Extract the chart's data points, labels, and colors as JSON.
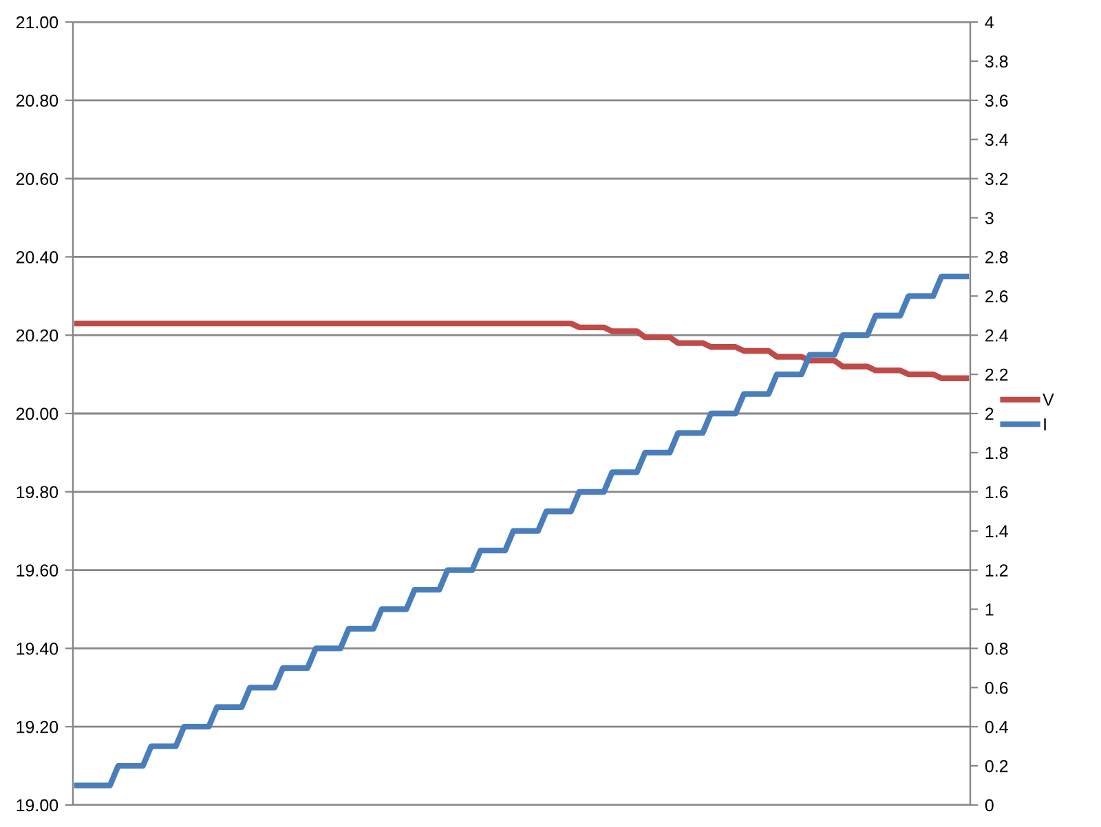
{
  "chart_data": {
    "type": "line",
    "categories": [
      null,
      null,
      null,
      null,
      null,
      null,
      null,
      null,
      null,
      null,
      null,
      null,
      null,
      null,
      null,
      null,
      null,
      null,
      null,
      null,
      null,
      null,
      null,
      null,
      null,
      null,
      null,
      null,
      null,
      null,
      null,
      null,
      null,
      null,
      null,
      null,
      null,
      null,
      null,
      null,
      null,
      null,
      null,
      null,
      null,
      null,
      null,
      null,
      null,
      null,
      null,
      null,
      null,
      null,
      null,
      null,
      null,
      null,
      null,
      null,
      null,
      null,
      null,
      null,
      null,
      null,
      null,
      null,
      null,
      null,
      null,
      null,
      null,
      null,
      null,
      null,
      null,
      null,
      null,
      null,
      null,
      null,
      null,
      null,
      null,
      null,
      null,
      null,
      null,
      null,
      null,
      null,
      null,
      null,
      null,
      null,
      null,
      null,
      null,
      null,
      null,
      null,
      null,
      null,
      null,
      null,
      null,
      null,
      null
    ],
    "series": [
      {
        "name": "V",
        "color": "#be4b48",
        "values": [
          20.23,
          20.23,
          20.23,
          20.23,
          20.23,
          20.23,
          20.23,
          20.23,
          20.23,
          20.23,
          20.23,
          20.23,
          20.23,
          20.23,
          20.23,
          20.23,
          20.23,
          20.23,
          20.23,
          20.23,
          20.23,
          20.23,
          20.23,
          20.23,
          20.23,
          20.23,
          20.23,
          20.23,
          20.23,
          20.23,
          20.23,
          20.23,
          20.23,
          20.23,
          20.23,
          20.23,
          20.23,
          20.23,
          20.23,
          20.23,
          20.23,
          20.23,
          20.23,
          20.23,
          20.23,
          20.23,
          20.23,
          20.23,
          20.23,
          20.23,
          20.23,
          20.23,
          20.23,
          20.23,
          20.23,
          20.23,
          20.23,
          20.23,
          20.23,
          20.23,
          20.23,
          20.22,
          20.22,
          20.22,
          20.22,
          20.21,
          20.21,
          20.21,
          20.21,
          20.195,
          20.195,
          20.195,
          20.195,
          20.18,
          20.18,
          20.18,
          20.18,
          20.17,
          20.17,
          20.17,
          20.17,
          20.16,
          20.16,
          20.16,
          20.16,
          20.145,
          20.145,
          20.145,
          20.145,
          20.135,
          20.135,
          20.135,
          20.135,
          20.12,
          20.12,
          20.12,
          20.12,
          20.11,
          20.11,
          20.11,
          20.11,
          20.1,
          20.1,
          20.1,
          20.1,
          20.09,
          20.09,
          20.09,
          20.09
        ]
      },
      {
        "name": "I",
        "color": "#4a7ebb",
        "axis": "y2",
        "values": [
          0.1,
          0.1,
          0.1,
          0.1,
          0.1,
          0.2,
          0.2,
          0.2,
          0.2,
          0.3,
          0.3,
          0.3,
          0.3,
          0.4,
          0.4,
          0.4,
          0.4,
          0.5,
          0.5,
          0.5,
          0.5,
          0.6,
          0.6,
          0.6,
          0.6,
          0.7,
          0.7,
          0.7,
          0.7,
          0.8,
          0.8,
          0.8,
          0.8,
          0.9,
          0.9,
          0.9,
          0.9,
          1.0,
          1.0,
          1.0,
          1.0,
          1.1,
          1.1,
          1.1,
          1.1,
          1.2,
          1.2,
          1.2,
          1.2,
          1.3,
          1.3,
          1.3,
          1.3,
          1.4,
          1.4,
          1.4,
          1.4,
          1.5,
          1.5,
          1.5,
          1.5,
          1.6,
          1.6,
          1.6,
          1.6,
          1.7,
          1.7,
          1.7,
          1.7,
          1.8,
          1.8,
          1.8,
          1.8,
          1.9,
          1.9,
          1.9,
          1.9,
          2.0,
          2.0,
          2.0,
          2.0,
          2.1,
          2.1,
          2.1,
          2.1,
          2.2,
          2.2,
          2.2,
          2.2,
          2.3,
          2.3,
          2.3,
          2.3,
          2.4,
          2.4,
          2.4,
          2.4,
          2.5,
          2.5,
          2.5,
          2.5,
          2.6,
          2.6,
          2.6,
          2.6,
          2.7,
          2.7,
          2.7,
          2.7
        ]
      }
    ],
    "ylim": [
      19,
      21
    ],
    "yticks": [
      {
        "value": 19,
        "label": "19.00"
      },
      {
        "value": 19.2,
        "label": "19.20"
      },
      {
        "value": 19.4,
        "label": "19.40"
      },
      {
        "value": 19.6,
        "label": "19.60"
      },
      {
        "value": 19.8,
        "label": "19.80"
      },
      {
        "value": 20,
        "label": "20.00"
      },
      {
        "value": 20.2,
        "label": "20.20"
      },
      {
        "value": 20.4,
        "label": "20.40"
      },
      {
        "value": 20.6,
        "label": "20.60"
      },
      {
        "value": 20.8,
        "label": "20.80"
      },
      {
        "value": 21,
        "label": "21.00"
      }
    ],
    "y2lim": [
      0,
      4
    ],
    "y2ticks": [
      0,
      0.2,
      0.4,
      0.6,
      0.8,
      1,
      1.2,
      1.4,
      1.6,
      1.8,
      2,
      2.2,
      2.4,
      2.6,
      2.8,
      3,
      3.2,
      3.4,
      3.6,
      3.8,
      4
    ],
    "grid": "y",
    "legend": "right",
    "marker": "none",
    "line_style": "solid"
  }
}
